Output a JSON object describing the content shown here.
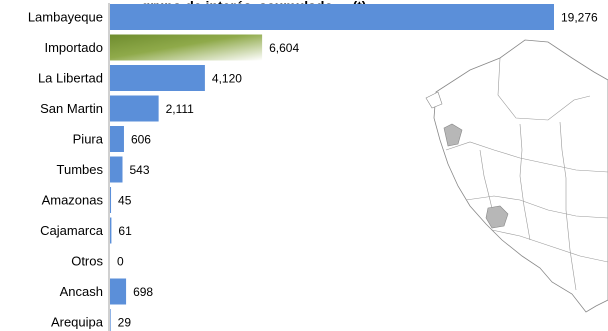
{
  "chart_data": {
    "type": "bar",
    "orientation": "horizontal",
    "title": "...grupo de interés, acumulado ... (t)",
    "categories": [
      "Lambayeque",
      "Importado",
      "La Libertad",
      "San Martin",
      "Piura",
      "Tumbes",
      "Amazonas",
      "Cajamarca",
      "Otros",
      "Ancash",
      "Arequipa"
    ],
    "values": [
      19276,
      6604,
      4120,
      2111,
      606,
      543,
      45,
      61,
      0,
      698,
      29
    ],
    "value_labels": [
      "19,276",
      "6,604",
      "4,120",
      "2,111",
      "606",
      "543",
      "45",
      "61",
      "0",
      "698",
      "29"
    ],
    "xlim": [
      0,
      19276
    ],
    "grid": false,
    "legend": "none",
    "bar_color": "#5b8fd9",
    "highlight_category": "Importado",
    "highlight_gradient": [
      "#6e8c2e",
      "#8faa4a",
      "#ffffff"
    ]
  },
  "map": {
    "icon": "peru-regions-map-icon",
    "region_fill": "#ffffff",
    "region_stroke": "#888888",
    "highlight_fill": "#b7b7b7"
  }
}
